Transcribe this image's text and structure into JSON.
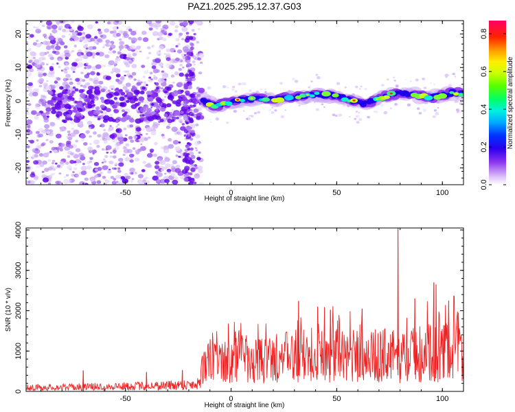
{
  "title": "PAZ1.2025.295.12.37.G03",
  "colors": {
    "snr_line": "#ee2222",
    "track_core": "#3df08a",
    "track_peak": "#ee2222",
    "noise": "#8a33ee",
    "background": "#ffffff"
  },
  "chart_data": [
    {
      "type": "heatmap",
      "name": "spectrogram",
      "xlabel": "Height of straight line (km)",
      "ylabel": "Frequency (Hz)",
      "xlim": [
        -97,
        110
      ],
      "ylim": [
        -25,
        24
      ],
      "xticks": [
        -50,
        0,
        50,
        100
      ],
      "yticks": [
        -20,
        -10,
        0,
        10,
        20
      ],
      "grid": false,
      "track": {
        "x": [
          -13,
          -8,
          -4,
          0,
          5,
          10,
          15,
          20,
          25,
          30,
          35,
          40,
          45,
          50,
          55,
          60,
          63,
          66,
          70,
          75,
          80,
          85,
          90,
          95,
          100,
          105,
          110
        ],
        "y": [
          0,
          -1.5,
          -1.0,
          -0.5,
          0.3,
          0.8,
          0.6,
          0.5,
          0.8,
          1.0,
          1.5,
          2.0,
          1.8,
          1.5,
          0.5,
          -0.5,
          -0.8,
          -0.3,
          0.8,
          1.8,
          2.5,
          2.0,
          1.5,
          1.0,
          1.8,
          2.5,
          2.2
        ]
      },
      "colorbar": {
        "label": "Normalized spectral amplitude",
        "ticks": [
          0.0,
          0.2,
          0.4,
          0.6,
          0.8
        ],
        "tick_labels": [
          "0.0",
          "0.2",
          "0.4",
          "0.6",
          "0.8"
        ],
        "range": [
          0,
          0.87
        ]
      }
    },
    {
      "type": "line",
      "name": "snr",
      "xlabel": "Height of straight line (km)",
      "ylabel": "SNR (10 * v/v)",
      "xlim": [
        -97,
        110
      ],
      "ylim": [
        0,
        4050
      ],
      "xticks": [
        -50,
        0,
        50,
        100
      ],
      "yticks": [
        0,
        1000,
        2000,
        3000,
        4000
      ],
      "grid": false,
      "envelope": {
        "x": [
          -97,
          -80,
          -60,
          -40,
          -20,
          -15,
          -14,
          -10,
          -5,
          0,
          5,
          10,
          12,
          20,
          30,
          40,
          50,
          60,
          70,
          80,
          90,
          100,
          110
        ],
        "y": [
          120,
          130,
          150,
          170,
          210,
          250,
          700,
          850,
          800,
          820,
          950,
          700,
          850,
          900,
          980,
          1050,
          1000,
          1020,
          1000,
          1000,
          1060,
          1120,
          1150
        ]
      },
      "spikes": [
        {
          "x": -70,
          "y": 520
        },
        {
          "x": -40,
          "y": 480
        },
        {
          "x": -23,
          "y": 530
        },
        {
          "x": 2,
          "y": 1480
        },
        {
          "x": 32,
          "y": 2240
        },
        {
          "x": 41,
          "y": 2100
        },
        {
          "x": 47,
          "y": 2020
        },
        {
          "x": 62,
          "y": 2050
        },
        {
          "x": 79,
          "y": 4050
        },
        {
          "x": 87,
          "y": 2300
        },
        {
          "x": 96,
          "y": 2700
        },
        {
          "x": 97,
          "y": 2650
        },
        {
          "x": 103,
          "y": 2250
        }
      ]
    }
  ]
}
